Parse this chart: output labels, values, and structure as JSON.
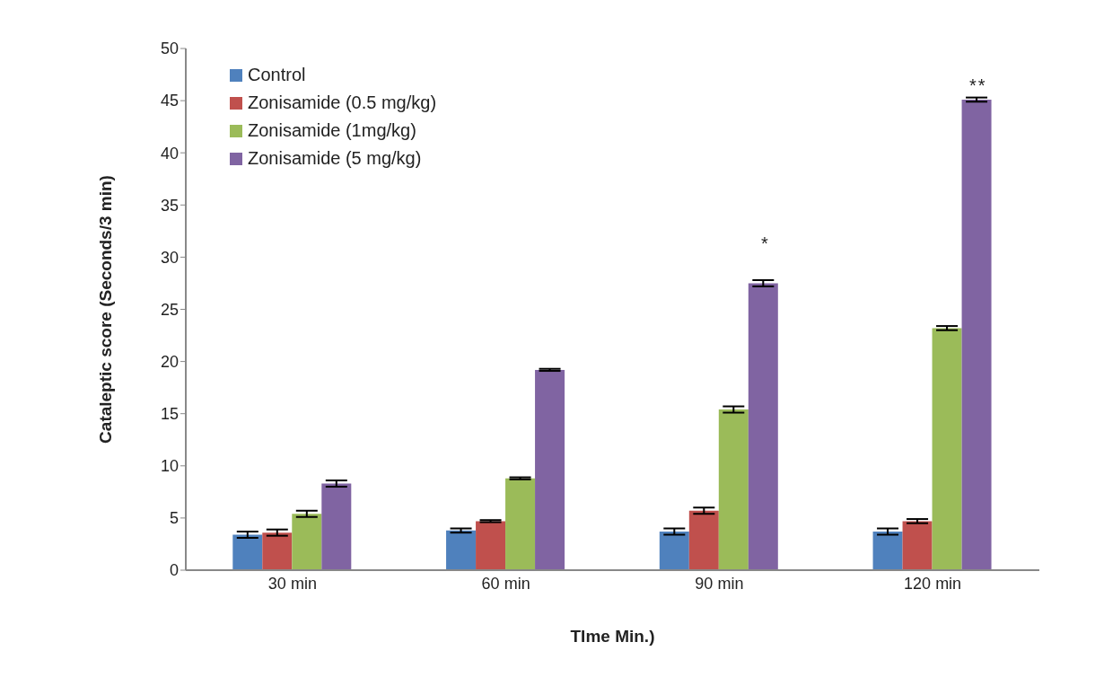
{
  "chart_data": {
    "type": "bar",
    "xlabel": "TIme Min.)",
    "ylabel": "Cataleptic score (Seconds/3 min)",
    "categories": [
      "30 min",
      "60 min",
      "90 min",
      "120 min"
    ],
    "series": [
      {
        "name": "Control",
        "color": "#4f81bd",
        "values": [
          3.4,
          3.8,
          3.7,
          3.7
        ],
        "errors": [
          0.3,
          0.2,
          0.3,
          0.3
        ]
      },
      {
        "name": "Zonisamide (0.5 mg/kg)",
        "color": "#c0504d",
        "values": [
          3.6,
          4.7,
          5.7,
          4.7
        ],
        "errors": [
          0.3,
          0.1,
          0.3,
          0.2
        ]
      },
      {
        "name": "Zonisamide (1mg/kg)",
        "color": "#9bbb59",
        "values": [
          5.4,
          8.8,
          15.4,
          23.2
        ],
        "errors": [
          0.3,
          0.1,
          0.3,
          0.2
        ]
      },
      {
        "name": "Zonisamide (5 mg/kg)",
        "color": "#8064a2",
        "values": [
          8.3,
          19.2,
          27.5,
          45.1
        ],
        "errors": [
          0.3,
          0.1,
          0.3,
          0.2
        ]
      }
    ],
    "annotations": [
      "*",
      "**"
    ],
    "ylim": [
      0,
      50
    ],
    "yticks": [
      0,
      5,
      10,
      15,
      20,
      25,
      30,
      35,
      40,
      45,
      50
    ],
    "grid": false,
    "legend": "top left"
  }
}
